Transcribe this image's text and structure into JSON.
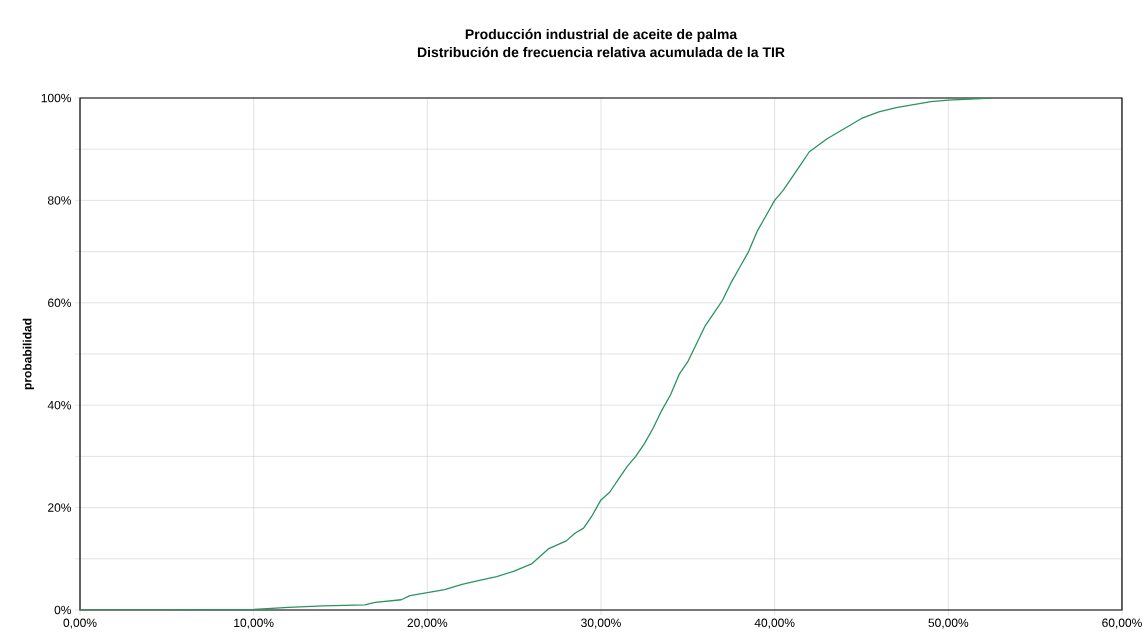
{
  "chart_data": {
    "type": "line",
    "title": "Producción industrial de aceite de palma",
    "subtitle": "Distribución de frecuencia relativa acumulada de la TIR",
    "ylabel": "probabilidad",
    "x": [
      0,
      5,
      10,
      12,
      14,
      16.4,
      17,
      18.5,
      19,
      20,
      21,
      22,
      23,
      24,
      25,
      26,
      26.5,
      27,
      28,
      28.5,
      29,
      29.5,
      30,
      30.5,
      31,
      31.5,
      32,
      32.5,
      33,
      33.5,
      34,
      34.5,
      35,
      35.5,
      36,
      36.5,
      37,
      37.5,
      38,
      38.5,
      39,
      39.5,
      40,
      40.5,
      41,
      41.5,
      42,
      43,
      44,
      45,
      46,
      47,
      48,
      49,
      50,
      52.5
    ],
    "series": [
      {
        "color": "#2a9460",
        "values": [
          0,
          0,
          0.1,
          0.5,
          0.8,
          1.0,
          1.5,
          2.0,
          2.8,
          3.4,
          4.0,
          5.0,
          5.8,
          6.5,
          7.6,
          9.0,
          10.5,
          12,
          13.5,
          15,
          16,
          18.5,
          21.5,
          23,
          25.5,
          28,
          30,
          32.5,
          35.5,
          39,
          42,
          46,
          48.5,
          52,
          55.5,
          58,
          60.5,
          64,
          67,
          70,
          74,
          77,
          80,
          82,
          84.5,
          87,
          89.5,
          92,
          94,
          96,
          97.3,
          98.1,
          98.7,
          99.3,
          99.6,
          100
        ]
      }
    ],
    "xlim": [
      0,
      60
    ],
    "ylim": [
      0,
      100
    ],
    "xticks": [
      {
        "value": 0,
        "label": "0,00%"
      },
      {
        "value": 10,
        "label": "10,00%"
      },
      {
        "value": 20,
        "label": "20,00%"
      },
      {
        "value": 30,
        "label": "30,00%"
      },
      {
        "value": 40,
        "label": "40,00%"
      },
      {
        "value": 50,
        "label": "50,00%"
      },
      {
        "value": 60,
        "label": "60,00%"
      }
    ],
    "yticks": [
      {
        "value": 0,
        "label": "0%"
      },
      {
        "value": 10,
        "label": null
      },
      {
        "value": 20,
        "label": "20%"
      },
      {
        "value": 30,
        "label": null
      },
      {
        "value": 40,
        "label": "40%"
      },
      {
        "value": 50,
        "label": null
      },
      {
        "value": 60,
        "label": "60%"
      },
      {
        "value": 70,
        "label": null
      },
      {
        "value": 80,
        "label": "80%"
      },
      {
        "value": 90,
        "label": null
      },
      {
        "value": 100,
        "label": "100%"
      }
    ],
    "grid": true,
    "marker": "none",
    "line_style": "solid"
  }
}
